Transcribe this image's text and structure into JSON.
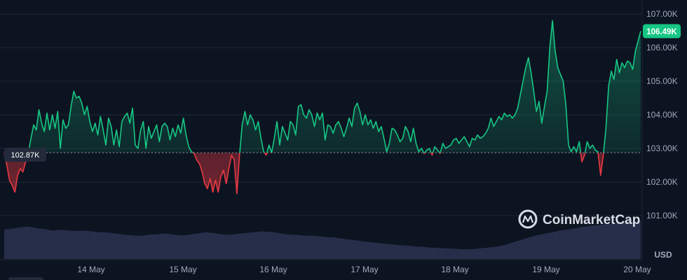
{
  "chart_data": {
    "type": "line",
    "currency_label": "USD",
    "x_ticks": [
      "14 May",
      "15 May",
      "16 May",
      "17 May",
      "18 May",
      "19 May",
      "20 May"
    ],
    "y_ticks": [
      "101.00K",
      "102.00K",
      "103.00K",
      "104.00K",
      "105.00K",
      "106.00K",
      "107.00K"
    ],
    "y_tick_values": [
      101000,
      102000,
      103000,
      104000,
      105000,
      106000,
      107000
    ],
    "ylim": [
      100200,
      107300
    ],
    "reference_price": 102870,
    "reference_label": "102.87K",
    "current_price": 106490,
    "current_label": "106.49K",
    "colors": {
      "up": "#16c784",
      "down": "#ea3943",
      "volume": "#2b3352",
      "grid": "#1e2637"
    },
    "series": [
      {
        "values": [
          102870,
          102500,
          102050,
          101900,
          101700,
          102200,
          102400,
          102300,
          102600,
          102850,
          103300,
          103700,
          103550,
          104150,
          103750,
          103500,
          104050,
          103550,
          104000,
          103600,
          104100,
          103000,
          103850,
          103600,
          103700,
          104250,
          104700,
          104500,
          104550,
          104350,
          104000,
          104250,
          103800,
          103500,
          103750,
          103400,
          103950,
          103550,
          103100,
          103900,
          103650,
          103100,
          103550,
          103050,
          103800,
          103950,
          104050,
          103750,
          104200,
          103100,
          103000,
          103550,
          103800,
          103000,
          103650,
          103300,
          103500,
          103700,
          103200,
          103650,
          103750,
          103650,
          103250,
          103600,
          103350,
          103700,
          103450,
          103900,
          103400,
          103050,
          102900,
          102850,
          102650,
          102550,
          102300,
          101950,
          101800,
          102100,
          101700,
          102050,
          101700,
          102150,
          102350,
          101950,
          102400,
          102800,
          102650,
          101650,
          102800,
          103700,
          104100,
          103700,
          104000,
          103850,
          103550,
          103800,
          103300,
          102900,
          102800,
          103100,
          102870,
          103300,
          103800,
          103100,
          103650,
          103450,
          103250,
          103800,
          103700,
          103400,
          104250,
          104300,
          104000,
          103900,
          104150,
          104000,
          103650,
          104050,
          103850,
          104050,
          103250,
          103700,
          103650,
          103450,
          103700,
          103800,
          103600,
          103350,
          103600,
          103900,
          103650,
          104200,
          104350,
          104100,
          103700,
          104000,
          103700,
          103850,
          103600,
          103800,
          103500,
          103650,
          103300,
          102900,
          103150,
          103600,
          103550,
          103400,
          103200,
          103300,
          103650,
          103500,
          103200,
          103600,
          103150,
          102900,
          103000,
          102850,
          102950,
          103000,
          102800,
          103050,
          102950,
          102850,
          103150,
          103000,
          103050,
          103100,
          103250,
          103300,
          103150,
          103250,
          103350,
          103200,
          103050,
          103300,
          103250,
          103400,
          103300,
          103350,
          103450,
          103600,
          103900,
          103650,
          103800,
          103950,
          103850,
          104050,
          103950,
          104000,
          103900,
          104000,
          104200,
          104600,
          105000,
          105400,
          105700,
          105250,
          104700,
          104100,
          104400,
          103750,
          104250,
          104700,
          106000,
          106800,
          105900,
          105400,
          105200,
          105000,
          104300,
          103100,
          102900,
          103050,
          102900,
          103200,
          102600,
          102800,
          103200,
          103000,
          103100,
          102950,
          102900,
          102200,
          102800,
          103600,
          104850,
          105300,
          105050,
          105650,
          105250,
          105550,
          105400,
          105600,
          105550,
          105350,
          105900,
          106200,
          106490
        ]
      }
    ],
    "volume": [
      0.72,
      0.75,
      0.78,
      0.8,
      0.76,
      0.74,
      0.7,
      0.72,
      0.7,
      0.69,
      0.7,
      0.68,
      0.66,
      0.65,
      0.62,
      0.6,
      0.58,
      0.57,
      0.6,
      0.61,
      0.63,
      0.6,
      0.58,
      0.6,
      0.63,
      0.66,
      0.64,
      0.61,
      0.6,
      0.62,
      0.64,
      0.66,
      0.68,
      0.67,
      0.64,
      0.61,
      0.6,
      0.58,
      0.57,
      0.56,
      0.54,
      0.53,
      0.5,
      0.48,
      0.45,
      0.42,
      0.4,
      0.38,
      0.36,
      0.34,
      0.33,
      0.31,
      0.3,
      0.28,
      0.27,
      0.26,
      0.25,
      0.24,
      0.24,
      0.26,
      0.28,
      0.3,
      0.34,
      0.4,
      0.46,
      0.52,
      0.58,
      0.62,
      0.66,
      0.7,
      0.73,
      0.76,
      0.8,
      0.82,
      0.84,
      0.86,
      0.88,
      0.9,
      0.92,
      0.93
    ]
  },
  "watermark": "CoinMarketCap"
}
